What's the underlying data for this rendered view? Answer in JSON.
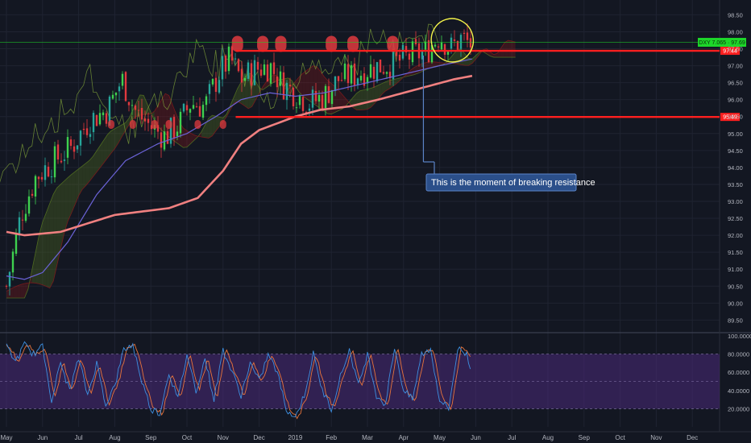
{
  "chart_data": {
    "type": "candlestick",
    "colors": {
      "background": "#131722",
      "grid": "#1f2331",
      "up": "#26a69a",
      "up_bright": "#3ed14f",
      "down": "#e0393e",
      "sma_slow": "#f08080",
      "sma_fast": "#6b63d8",
      "resistance": "#ff1f1f",
      "ichimoku_green": "#5a7a20",
      "ichimoku_red": "#8b1a1a",
      "lagging": "#7fa23a",
      "stoch_k": "#3d8fe0",
      "stoch_d": "#e8743b",
      "stoch_band": "#4a2a7a",
      "highlight": "#f3f34a",
      "price_tag": "#1dd72a"
    },
    "x_labels": [
      "May",
      "Jun",
      "Jul",
      "Aug",
      "Sep",
      "Oct",
      "Nov",
      "Dec",
      "2019",
      "Feb",
      "Mar",
      "Apr",
      "May",
      "Jun",
      "Jul",
      "Aug",
      "Sep",
      "Oct",
      "Nov",
      "Dec"
    ],
    "y_ticks": [
      "98.50",
      "98.00",
      "97.50",
      "97.00",
      "96.50",
      "96.00",
      "95.50",
      "95.00",
      "94.50",
      "94.00",
      "93.50",
      "93.00",
      "92.50",
      "92.00",
      "91.50",
      "91.00",
      "90.50",
      "90.00",
      "89.50"
    ],
    "y_range": [
      89.2,
      98.7
    ],
    "osc_ticks": [
      "100.0000",
      "80.0000",
      "60.0000",
      "40.0000",
      "20.0000"
    ],
    "osc_range": [
      0,
      100
    ],
    "osc_band": [
      20,
      80
    ],
    "resistance_levels": [
      97.44,
      95.49
    ],
    "resistance_labels": [
      "97.44",
      "95.49"
    ],
    "current_tag": "DXY 7.065 · 97.69",
    "current_price": 97.69,
    "annotation": "This is the moment of breaking resistance",
    "anchors": [
      {
        "m": 0.0,
        "v": 90.5
      },
      {
        "m": 0.4,
        "v": 92.6
      },
      {
        "m": 0.8,
        "v": 93.7
      },
      {
        "m": 1.2,
        "v": 94.1
      },
      {
        "m": 1.8,
        "v": 94.6
      },
      {
        "m": 2.3,
        "v": 95.4
      },
      {
        "m": 2.8,
        "v": 95.7
      },
      {
        "m": 3.2,
        "v": 96.6
      },
      {
        "m": 3.6,
        "v": 95.6
      },
      {
        "m": 4.0,
        "v": 95.2
      },
      {
        "m": 4.4,
        "v": 94.9
      },
      {
        "m": 4.8,
        "v": 95.3
      },
      {
        "m": 5.1,
        "v": 95.9
      },
      {
        "m": 5.5,
        "v": 95.8
      },
      {
        "m": 5.9,
        "v": 96.8
      },
      {
        "m": 6.2,
        "v": 97.2
      },
      {
        "m": 6.5,
        "v": 96.6
      },
      {
        "m": 6.9,
        "v": 96.9
      },
      {
        "m": 7.3,
        "v": 97.0
      },
      {
        "m": 7.6,
        "v": 96.5
      },
      {
        "m": 8.0,
        "v": 96.2
      },
      {
        "m": 8.4,
        "v": 95.9
      },
      {
        "m": 8.8,
        "v": 96.1
      },
      {
        "m": 9.2,
        "v": 96.6
      },
      {
        "m": 9.6,
        "v": 96.7
      },
      {
        "m": 10.0,
        "v": 96.9
      },
      {
        "m": 10.4,
        "v": 97.0
      },
      {
        "m": 10.8,
        "v": 97.1
      },
      {
        "m": 11.2,
        "v": 97.3
      },
      {
        "m": 11.6,
        "v": 97.4
      },
      {
        "m": 12.0,
        "v": 97.9
      },
      {
        "m": 12.3,
        "v": 97.5
      },
      {
        "m": 12.6,
        "v": 97.8
      },
      {
        "m": 12.9,
        "v": 97.6
      }
    ],
    "sma_slow": [
      {
        "m": 0.0,
        "v": 92.1
      },
      {
        "m": 0.5,
        "v": 92.0
      },
      {
        "m": 1.5,
        "v": 92.1
      },
      {
        "m": 3.0,
        "v": 92.6
      },
      {
        "m": 4.5,
        "v": 92.8
      },
      {
        "m": 5.3,
        "v": 93.1
      },
      {
        "m": 6.0,
        "v": 93.9
      },
      {
        "m": 6.5,
        "v": 94.7
      },
      {
        "m": 7.0,
        "v": 95.1
      },
      {
        "m": 7.5,
        "v": 95.3
      },
      {
        "m": 8.0,
        "v": 95.5
      },
      {
        "m": 8.7,
        "v": 95.7
      },
      {
        "m": 9.5,
        "v": 95.8
      },
      {
        "m": 10.3,
        "v": 96.0
      },
      {
        "m": 11.0,
        "v": 96.2
      },
      {
        "m": 11.7,
        "v": 96.4
      },
      {
        "m": 12.4,
        "v": 96.6
      },
      {
        "m": 12.9,
        "v": 96.7
      }
    ],
    "sma_fast": [
      {
        "m": 0.0,
        "v": 90.8
      },
      {
        "m": 0.5,
        "v": 90.7
      },
      {
        "m": 1.0,
        "v": 90.9
      },
      {
        "m": 1.7,
        "v": 91.8
      },
      {
        "m": 2.5,
        "v": 93.2
      },
      {
        "m": 3.3,
        "v": 94.2
      },
      {
        "m": 4.2,
        "v": 94.7
      },
      {
        "m": 5.0,
        "v": 95.0
      },
      {
        "m": 5.8,
        "v": 95.5
      },
      {
        "m": 6.5,
        "v": 96.0
      },
      {
        "m": 7.3,
        "v": 96.2
      },
      {
        "m": 8.0,
        "v": 96.1
      },
      {
        "m": 8.8,
        "v": 96.2
      },
      {
        "m": 9.6,
        "v": 96.4
      },
      {
        "m": 10.4,
        "v": 96.6
      },
      {
        "m": 11.2,
        "v": 96.8
      },
      {
        "m": 12.0,
        "v": 97.0
      },
      {
        "m": 12.9,
        "v": 97.2
      }
    ],
    "stoch": [
      {
        "m": 0.0,
        "v": 88
      },
      {
        "m": 0.25,
        "v": 72
      },
      {
        "m": 0.5,
        "v": 90
      },
      {
        "m": 0.75,
        "v": 80
      },
      {
        "m": 1.0,
        "v": 88
      },
      {
        "m": 1.25,
        "v": 30
      },
      {
        "m": 1.5,
        "v": 70
      },
      {
        "m": 1.75,
        "v": 40
      },
      {
        "m": 2.0,
        "v": 75
      },
      {
        "m": 2.25,
        "v": 35
      },
      {
        "m": 2.5,
        "v": 70
      },
      {
        "m": 2.75,
        "v": 25
      },
      {
        "m": 3.0,
        "v": 45
      },
      {
        "m": 3.25,
        "v": 85
      },
      {
        "m": 3.5,
        "v": 90
      },
      {
        "m": 3.75,
        "v": 50
      },
      {
        "m": 4.0,
        "v": 20
      },
      {
        "m": 4.25,
        "v": 15
      },
      {
        "m": 4.5,
        "v": 60
      },
      {
        "m": 4.75,
        "v": 30
      },
      {
        "m": 5.0,
        "v": 80
      },
      {
        "m": 5.25,
        "v": 40
      },
      {
        "m": 5.5,
        "v": 75
      },
      {
        "m": 5.75,
        "v": 30
      },
      {
        "m": 6.0,
        "v": 85
      },
      {
        "m": 6.25,
        "v": 60
      },
      {
        "m": 6.5,
        "v": 35
      },
      {
        "m": 6.75,
        "v": 70
      },
      {
        "m": 7.0,
        "v": 50
      },
      {
        "m": 7.25,
        "v": 80
      },
      {
        "m": 7.5,
        "v": 60
      },
      {
        "m": 7.75,
        "v": 20
      },
      {
        "m": 8.0,
        "v": 10
      },
      {
        "m": 8.25,
        "v": 35
      },
      {
        "m": 8.5,
        "v": 80
      },
      {
        "m": 8.75,
        "v": 40
      },
      {
        "m": 9.0,
        "v": 20
      },
      {
        "m": 9.25,
        "v": 55
      },
      {
        "m": 9.5,
        "v": 85
      },
      {
        "m": 9.75,
        "v": 45
      },
      {
        "m": 10.0,
        "v": 80
      },
      {
        "m": 10.25,
        "v": 35
      },
      {
        "m": 10.5,
        "v": 25
      },
      {
        "m": 10.75,
        "v": 88
      },
      {
        "m": 11.0,
        "v": 40
      },
      {
        "m": 11.25,
        "v": 30
      },
      {
        "m": 11.5,
        "v": 80
      },
      {
        "m": 11.75,
        "v": 85
      },
      {
        "m": 12.0,
        "v": 30
      },
      {
        "m": 12.25,
        "v": 20
      },
      {
        "m": 12.5,
        "v": 86
      },
      {
        "m": 12.75,
        "v": 80
      },
      {
        "m": 12.9,
        "v": 55
      }
    ],
    "bottom_markers_m": [
      2.9,
      3.5,
      4.1,
      4.5,
      5.3,
      6.0
    ],
    "top_markers_m": [
      6.4,
      7.1,
      7.6,
      9.0,
      9.6,
      10.7
    ]
  }
}
